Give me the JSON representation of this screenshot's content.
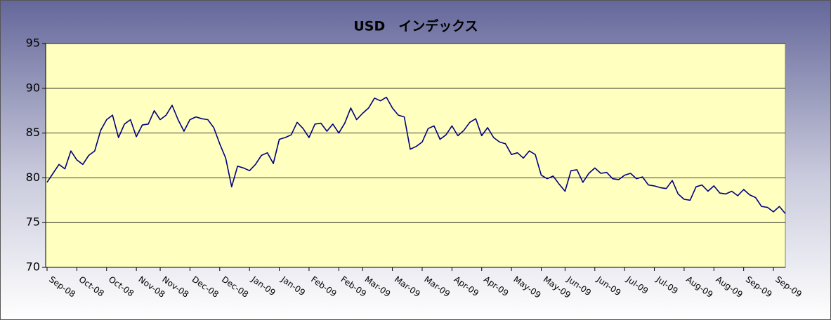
{
  "chart_data": {
    "type": "line",
    "title": "USD　インデックス",
    "categories": [
      "Sep-08",
      null,
      null,
      null,
      null,
      "Oct-08",
      null,
      null,
      null,
      null,
      "Oct-08",
      null,
      null,
      null,
      null,
      "Nov-08",
      null,
      null,
      null,
      "Nov-08",
      null,
      null,
      null,
      null,
      "Dec-08",
      null,
      null,
      null,
      null,
      "Dec-08",
      null,
      null,
      null,
      null,
      "Jan-09",
      null,
      null,
      null,
      null,
      "Jan-09",
      null,
      null,
      null,
      null,
      "Feb-09",
      null,
      null,
      null,
      null,
      "Feb-09",
      null,
      null,
      null,
      "Mar-09",
      null,
      null,
      null,
      null,
      "Mar-09",
      null,
      null,
      null,
      null,
      "Mar-09",
      null,
      null,
      null,
      null,
      "Apr-09",
      null,
      null,
      null,
      null,
      "Apr-09",
      null,
      null,
      null,
      null,
      "May-09",
      null,
      null,
      null,
      null,
      "May-09",
      null,
      null,
      null,
      "Jun-09",
      null,
      null,
      null,
      null,
      "Jun-09",
      null,
      null,
      null,
      null,
      "Jul-09",
      null,
      null,
      null,
      null,
      "Jul-09",
      null,
      null,
      null,
      null,
      "Aug-09",
      null,
      null,
      null,
      null,
      "Aug-09",
      null,
      null,
      null,
      null,
      "Sep-09",
      null,
      null,
      null,
      null,
      "Sep-09",
      null,
      null
    ],
    "values": [
      79.5,
      80.5,
      81.5,
      81.0,
      83.0,
      82.0,
      81.5,
      82.5,
      83.0,
      85.3,
      86.5,
      87.0,
      84.5,
      86.0,
      86.5,
      84.6,
      85.9,
      86.0,
      87.5,
      86.5,
      87.0,
      88.1,
      86.5,
      85.2,
      86.5,
      86.8,
      86.6,
      86.5,
      85.6,
      83.8,
      82.2,
      79.0,
      81.3,
      81.1,
      80.8,
      81.5,
      82.5,
      82.8,
      81.6,
      84.3,
      84.5,
      84.8,
      86.2,
      85.5,
      84.5,
      86.0,
      86.1,
      85.2,
      86.0,
      85.0,
      86.1,
      87.8,
      86.5,
      87.2,
      87.8,
      88.9,
      88.6,
      89.0,
      87.8,
      87.0,
      86.8,
      83.2,
      83.5,
      84.0,
      85.5,
      85.8,
      84.3,
      84.8,
      85.8,
      84.7,
      85.3,
      86.2,
      86.6,
      84.7,
      85.6,
      84.5,
      84.0,
      83.8,
      82.6,
      82.8,
      82.2,
      83.0,
      82.6,
      80.3,
      79.9,
      80.2,
      79.3,
      78.5,
      80.8,
      80.9,
      79.5,
      80.5,
      81.1,
      80.5,
      80.6,
      79.9,
      79.8,
      80.3,
      80.5,
      79.9,
      80.1,
      79.2,
      79.1,
      78.9,
      78.8,
      79.7,
      78.2,
      77.6,
      77.5,
      79.0,
      79.2,
      78.5,
      79.1,
      78.3,
      78.2,
      78.5,
      78.0,
      78.7,
      78.1,
      77.8,
      76.8,
      76.7,
      76.2,
      76.8,
      76.0
    ],
    "color": "#000080",
    "plot_background": "#ffffc0",
    "ylim": [
      70,
      95
    ],
    "yticks": [
      70,
      75,
      80,
      85,
      90,
      95
    ],
    "grid": true
  }
}
